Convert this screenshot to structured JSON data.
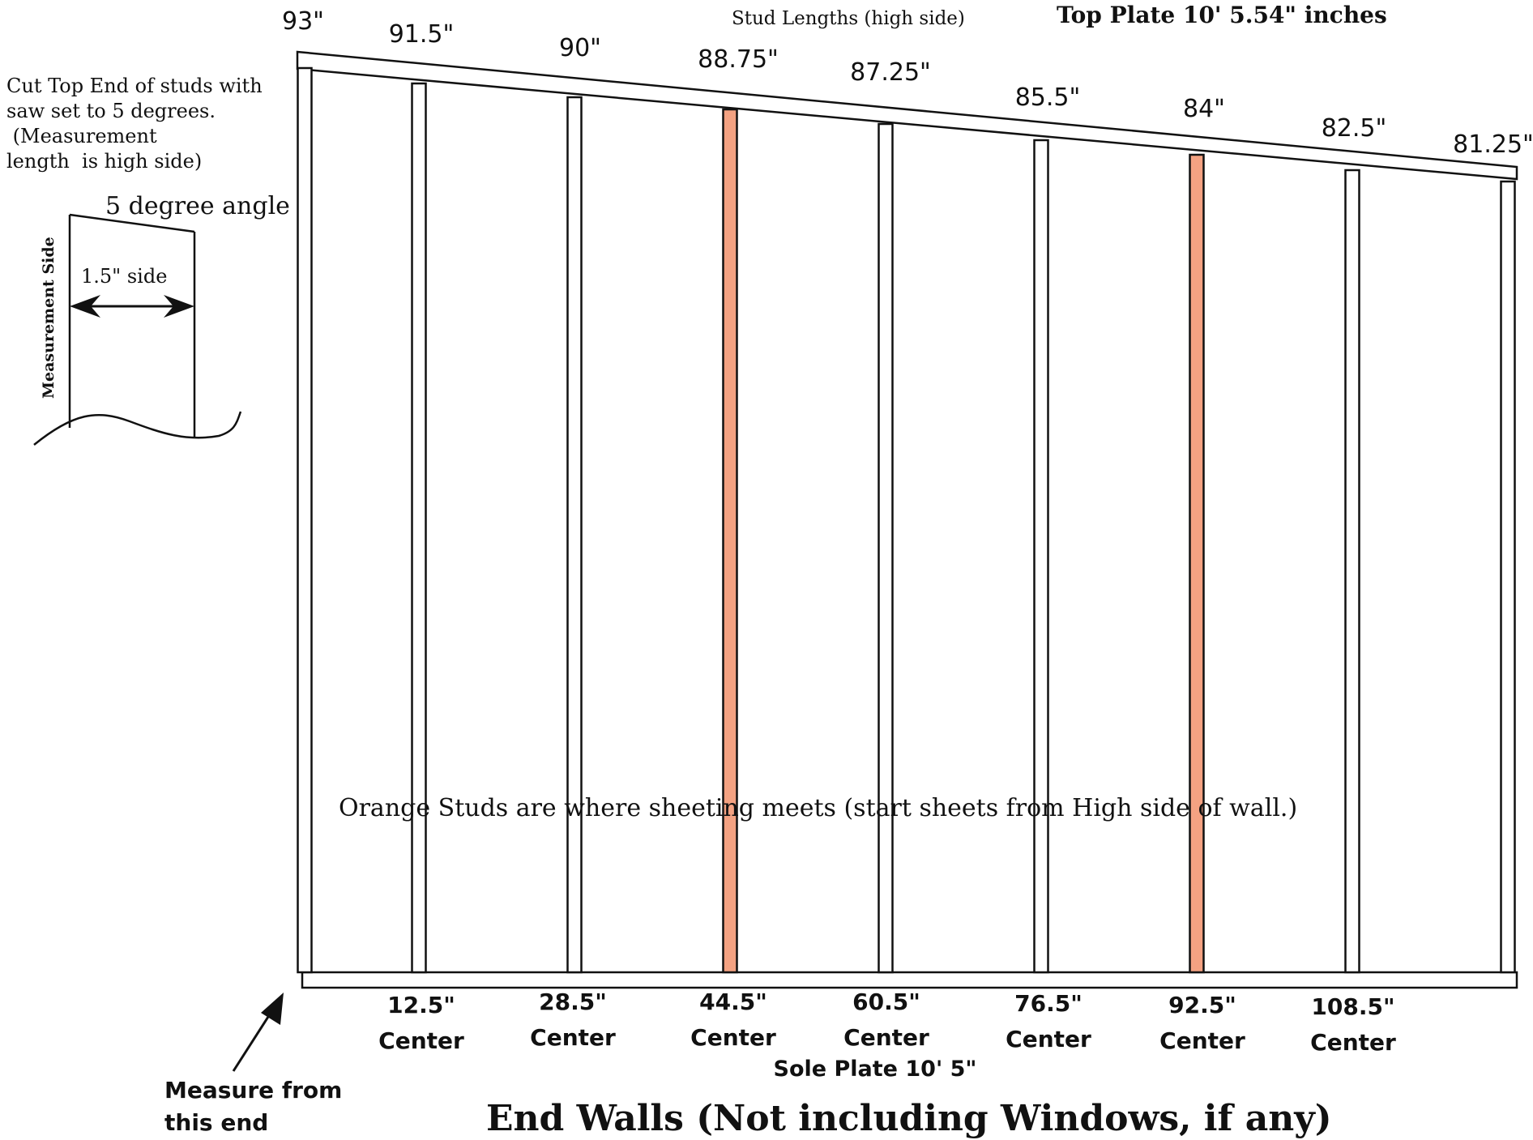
{
  "top_plate_label": "Top Plate 10' 5.54\" inches",
  "stud_lengths_caption": "Stud Lengths (high side)",
  "cut_note": {
    "line1": "Cut Top End of studs with",
    "line2": "saw set to 5 degrees.",
    "line3": " (Measurement",
    "line4": "length  is high side)"
  },
  "angle_label": "5 degree angle",
  "side_label": "1.5\" side",
  "measurement_side_label": "Measurement Side",
  "orange_note": "Orange Studs are where sheeting meets (start sheets from High side of wall.)",
  "sole_plate_label": "Sole Plate 10' 5\"",
  "measure_note": {
    "line1": "Measure from",
    "line2": "this end"
  },
  "main_title": "End Walls (Not including Windows, if any)",
  "center_word": "Center",
  "colors": {
    "orange_stud": "#f4a282",
    "stud": "#ffffff",
    "line": "#111111"
  },
  "studs": [
    {
      "length": "93\"",
      "center": "",
      "orange": false
    },
    {
      "length": "91.5\"",
      "center": "12.5\"",
      "orange": false
    },
    {
      "length": "90\"",
      "center": "28.5\"",
      "orange": false
    },
    {
      "length": "88.75\"",
      "center": "44.5\"",
      "orange": true
    },
    {
      "length": "87.25\"",
      "center": "60.5\"",
      "orange": false
    },
    {
      "length": "85.5\"",
      "center": "76.5\"",
      "orange": false
    },
    {
      "length": "84\"",
      "center": "92.5\"",
      "orange": true
    },
    {
      "length": "82.5\"",
      "center": "108.5\"",
      "orange": false
    },
    {
      "length": "81.25\"",
      "center": "",
      "orange": false
    }
  ]
}
